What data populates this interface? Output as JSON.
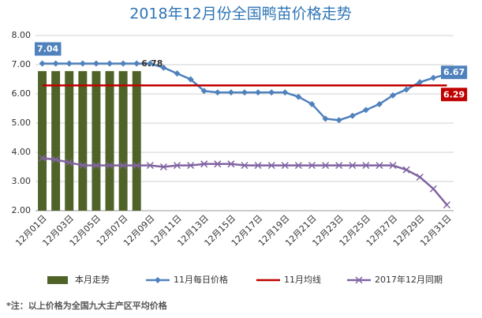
{
  "chart_data": {
    "type": "combo",
    "title": "2018年12月份全国鸭苗价格走势",
    "footnote": "*注：以上价格为全国九大主产区平均价格",
    "categories": [
      "12月01日",
      null,
      "12月03日",
      null,
      "12月05日",
      null,
      "12月07日",
      null,
      "12月09日",
      null,
      "12月11日",
      null,
      "12月13日",
      null,
      "12月15日",
      null,
      "12月17日",
      null,
      "12月19日",
      null,
      "12月21日",
      null,
      "12月23日",
      null,
      "12月25日",
      null,
      "12月27日",
      null,
      "12月29日",
      null,
      "12月31日"
    ],
    "ylim": [
      2,
      8
    ],
    "yticks": [
      {
        "value": 2,
        "label": "2.00"
      },
      {
        "value": 3,
        "label": "3.00"
      },
      {
        "value": 4,
        "label": "4.00"
      },
      {
        "value": 5,
        "label": "5.00"
      },
      {
        "value": 6,
        "label": "6.00"
      },
      {
        "value": 7,
        "label": "7.00"
      },
      {
        "value": 8,
        "label": "8.00"
      }
    ],
    "grid": true,
    "legend": "bottom",
    "series": [
      {
        "name": "本月走势",
        "type": "bar",
        "color": "#4f6228",
        "values": [
          6.78,
          6.78,
          6.78,
          6.78,
          6.78,
          6.78,
          6.78,
          6.78,
          null,
          null,
          null,
          null,
          null,
          null,
          null,
          null,
          null,
          null,
          null,
          null,
          null,
          null,
          null,
          null,
          null,
          null,
          null,
          null,
          null,
          null,
          null
        ]
      },
      {
        "name": "11月每日价格",
        "type": "line",
        "marker": "diamond",
        "color": "#4f81bd",
        "values": [
          7.04,
          7.04,
          7.04,
          7.04,
          7.04,
          7.04,
          7.04,
          7.04,
          7.04,
          6.9,
          6.7,
          6.5,
          6.1,
          6.05,
          6.05,
          6.05,
          6.05,
          6.05,
          6.05,
          5.9,
          5.65,
          5.15,
          5.1,
          5.25,
          5.45,
          5.65,
          5.95,
          6.15,
          6.4,
          6.55,
          6.67
        ]
      },
      {
        "name": "11月均线",
        "type": "line",
        "marker": "none",
        "color": "#c00000",
        "values": [
          6.29,
          6.29,
          6.29,
          6.29,
          6.29,
          6.29,
          6.29,
          6.29,
          6.29,
          6.29,
          6.29,
          6.29,
          6.29,
          6.29,
          6.29,
          6.29,
          6.29,
          6.29,
          6.29,
          6.29,
          6.29,
          6.29,
          6.29,
          6.29,
          6.29,
          6.29,
          6.29,
          6.29,
          6.29,
          6.29,
          6.29
        ]
      },
      {
        "name": "2017年12月同期",
        "type": "line",
        "marker": "x",
        "color": "#8064a2",
        "values": [
          3.8,
          3.75,
          3.65,
          3.55,
          3.55,
          3.55,
          3.55,
          3.55,
          3.55,
          3.5,
          3.55,
          3.55,
          3.6,
          3.6,
          3.6,
          3.55,
          3.55,
          3.55,
          3.55,
          3.55,
          3.55,
          3.55,
          3.55,
          3.55,
          3.55,
          3.55,
          3.55,
          3.4,
          3.15,
          2.75,
          2.2
        ]
      }
    ]
  }
}
